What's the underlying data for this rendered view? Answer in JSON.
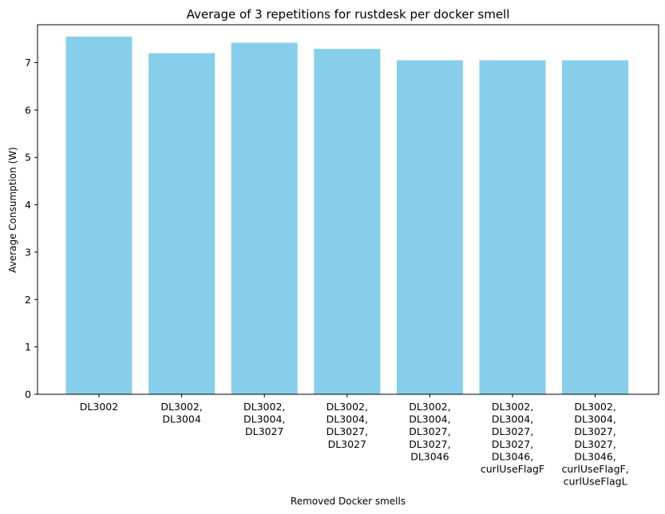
{
  "chart_data": {
    "type": "bar",
    "title": "Average of 3 repetitions for rustdesk per docker smell",
    "xlabel": "Removed Docker smells",
    "ylabel": "Average Consumption (W)",
    "categories": [
      [
        "DL3002"
      ],
      [
        "DL3002,",
        "DL3004"
      ],
      [
        "DL3002,",
        "DL3004,",
        "DL3027"
      ],
      [
        "DL3002,",
        "DL3004,",
        "DL3027,",
        "DL3027"
      ],
      [
        "DL3002,",
        "DL3004,",
        "DL3027,",
        "DL3027,",
        "DL3046"
      ],
      [
        "DL3002,",
        "DL3004,",
        "DL3027,",
        "DL3027,",
        "DL3046,",
        "curlUseFlagF"
      ],
      [
        "DL3002,",
        "DL3004,",
        "DL3027,",
        "DL3027,",
        "DL3046,",
        "curlUseFlagF,",
        "curlUseFlagL"
      ]
    ],
    "values": [
      7.55,
      7.2,
      7.42,
      7.29,
      7.05,
      7.05,
      7.05
    ],
    "ylim": [
      0,
      7.8
    ],
    "yticks": [
      "0",
      "1",
      "2",
      "3",
      "4",
      "5",
      "6",
      "7"
    ],
    "grid": false,
    "bar_color": "#87ceeb"
  }
}
